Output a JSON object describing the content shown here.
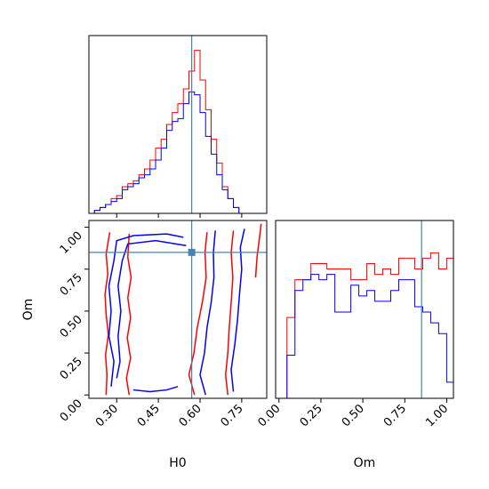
{
  "chart_data": {
    "type": "corner",
    "parameters": [
      "H0",
      "Om"
    ],
    "truth": {
      "H0": 0.57,
      "Om": 0.85
    },
    "xlabel_H0": "H0",
    "xlabel_Om": "Om",
    "ylabel_Om": "Om",
    "colors": {
      "red": "#ff0000",
      "blue": "#0000ff",
      "truth": "#4682b4"
    },
    "H0_range": [
      0.2,
      0.84
    ],
    "Om_range": [
      -0.02,
      1.04
    ],
    "H0_ticks": [
      "0.30",
      "0.45",
      "0.60",
      "0.75"
    ],
    "H0_tick_values": [
      0.3,
      0.45,
      0.6,
      0.75
    ],
    "Om_ticks": [
      "0.00",
      "0.25",
      "0.50",
      "0.75",
      "1.00"
    ],
    "Om_tick_values": [
      0.0,
      0.25,
      0.5,
      0.75,
      1.0
    ],
    "hist_H0": {
      "bin_start": 0.2,
      "bin_width": 0.02,
      "series": [
        {
          "color": "red",
          "values": [
            0,
            1,
            2,
            3,
            5,
            6,
            9,
            10,
            11,
            13,
            15,
            18,
            22,
            25,
            30,
            34,
            37,
            42,
            48,
            55,
            45,
            35,
            25,
            17,
            9,
            5,
            2,
            0,
            0,
            0,
            0,
            0
          ]
        },
        {
          "color": "blue",
          "values": [
            0,
            1,
            2,
            3,
            4,
            5,
            8,
            9,
            10,
            12,
            13,
            15,
            18,
            22,
            28,
            31,
            32,
            37,
            41,
            40,
            34,
            26,
            20,
            13,
            8,
            5,
            2,
            0,
            0,
            0,
            0,
            0
          ]
        }
      ]
    },
    "hist_Om": {
      "bin_start": 0.0,
      "bin_width": 0.0476,
      "series": [
        {
          "color": "red",
          "values": [
            0,
            15,
            22,
            22,
            25,
            25,
            24,
            24,
            24,
            22,
            22,
            25,
            23,
            24,
            23,
            26,
            26,
            24,
            26,
            27,
            24,
            26
          ]
        },
        {
          "color": "blue",
          "values": [
            0,
            8,
            20,
            22,
            23,
            22,
            23,
            16,
            16,
            21,
            19,
            20,
            18,
            18,
            20,
            22,
            22,
            17,
            16,
            14,
            12,
            3
          ]
        }
      ]
    },
    "contours": [
      {
        "color": "red",
        "paths": [
          [
            [
              0.262,
              0.0
            ],
            [
              0.265,
              0.12
            ],
            [
              0.26,
              0.24
            ],
            [
              0.27,
              0.36
            ],
            [
              0.262,
              0.48
            ],
            [
              0.258,
              0.6
            ],
            [
              0.268,
              0.72
            ],
            [
              0.262,
              0.84
            ],
            [
              0.275,
              0.97
            ]
          ],
          [
            [
              0.345,
              0.0
            ],
            [
              0.335,
              0.1
            ],
            [
              0.35,
              0.22
            ],
            [
              0.338,
              0.34
            ],
            [
              0.35,
              0.46
            ],
            [
              0.34,
              0.58
            ],
            [
              0.352,
              0.7
            ],
            [
              0.34,
              0.82
            ],
            [
              0.345,
              0.96
            ]
          ],
          [
            [
              0.58,
              0.0
            ],
            [
              0.56,
              0.12
            ],
            [
              0.578,
              0.25
            ],
            [
              0.59,
              0.4
            ],
            [
              0.608,
              0.55
            ],
            [
              0.622,
              0.7
            ],
            [
              0.618,
              0.85
            ],
            [
              0.625,
              0.97
            ]
          ],
          [
            [
              0.7,
              0.0
            ],
            [
              0.692,
              0.12
            ],
            [
              0.7,
              0.25
            ],
            [
              0.705,
              0.4
            ],
            [
              0.712,
              0.55
            ],
            [
              0.718,
              0.7
            ],
            [
              0.712,
              0.85
            ],
            [
              0.72,
              0.98
            ]
          ],
          [
            [
              0.8,
              0.7
            ],
            [
              0.805,
              0.82
            ],
            [
              0.815,
              0.95
            ],
            [
              0.82,
              1.02
            ]
          ]
        ]
      },
      {
        "color": "blue",
        "paths": [
          [
            [
              0.28,
              0.05
            ],
            [
              0.29,
              0.2
            ],
            [
              0.272,
              0.35
            ],
            [
              0.28,
              0.5
            ],
            [
              0.272,
              0.65
            ],
            [
              0.29,
              0.8
            ],
            [
              0.3,
              0.92
            ],
            [
              0.36,
              0.95
            ],
            [
              0.48,
              0.96
            ],
            [
              0.54,
              0.94
            ]
          ],
          [
            [
              0.3,
              0.1
            ],
            [
              0.312,
              0.2
            ],
            [
              0.305,
              0.35
            ],
            [
              0.315,
              0.5
            ],
            [
              0.305,
              0.65
            ],
            [
              0.32,
              0.8
            ],
            [
              0.34,
              0.9
            ],
            [
              0.44,
              0.92
            ],
            [
              0.55,
              0.89
            ]
          ],
          [
            [
              0.36,
              0.03
            ],
            [
              0.42,
              0.02
            ],
            [
              0.48,
              0.03
            ],
            [
              0.52,
              0.05
            ]
          ],
          [
            [
              0.62,
              0.0
            ],
            [
              0.6,
              0.12
            ],
            [
              0.616,
              0.25
            ],
            [
              0.625,
              0.4
            ],
            [
              0.64,
              0.55
            ],
            [
              0.65,
              0.7
            ],
            [
              0.648,
              0.85
            ],
            [
              0.655,
              0.98
            ]
          ],
          [
            [
              0.72,
              0.02
            ],
            [
              0.712,
              0.15
            ],
            [
              0.725,
              0.3
            ],
            [
              0.735,
              0.45
            ],
            [
              0.742,
              0.6
            ],
            [
              0.75,
              0.75
            ],
            [
              0.745,
              0.88
            ],
            [
              0.76,
              0.99
            ]
          ]
        ]
      }
    ]
  }
}
